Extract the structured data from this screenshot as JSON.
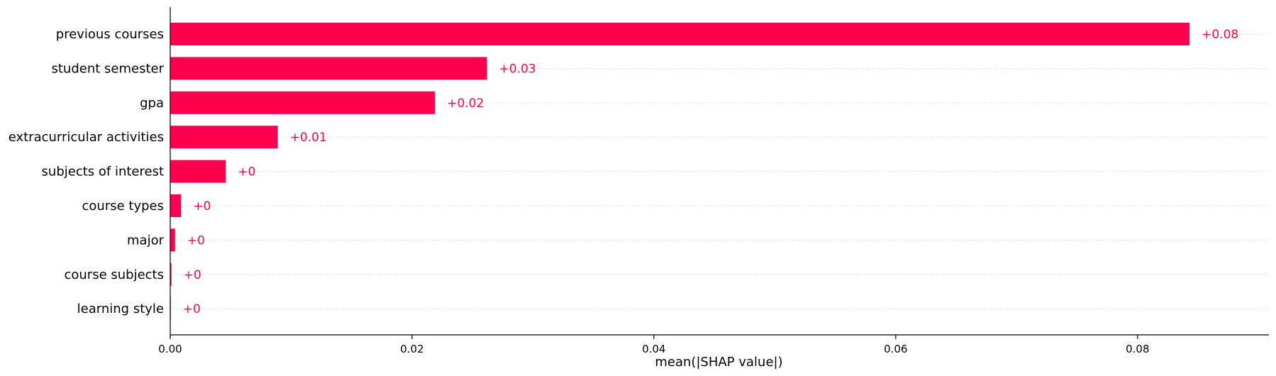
{
  "chart_data": {
    "type": "bar",
    "orientation": "horizontal",
    "categories": [
      "previous courses",
      "student semester",
      "gpa",
      "extracurricular activities",
      "subjects of interest",
      "course types",
      "major",
      "course subjects",
      "learning style"
    ],
    "values": [
      0.0843,
      0.0262,
      0.0219,
      0.0089,
      0.0046,
      0.0009,
      0.0004,
      0.0001,
      0.0
    ],
    "value_labels": [
      "+0.08",
      "+0.03",
      "+0.02",
      "+0.01",
      "+0",
      "+0",
      "+0",
      "+0",
      "+0"
    ],
    "xlabel": "mean(|SHAP value|)",
    "xticks": [
      0.0,
      0.02,
      0.04,
      0.06,
      0.08
    ],
    "xtick_labels": [
      "0.00",
      "0.02",
      "0.04",
      "0.06",
      "0.08"
    ],
    "xlim": [
      0,
      0.093
    ],
    "bar_color": "#ff0051",
    "grid": "dotted horizontal lines per bar"
  }
}
